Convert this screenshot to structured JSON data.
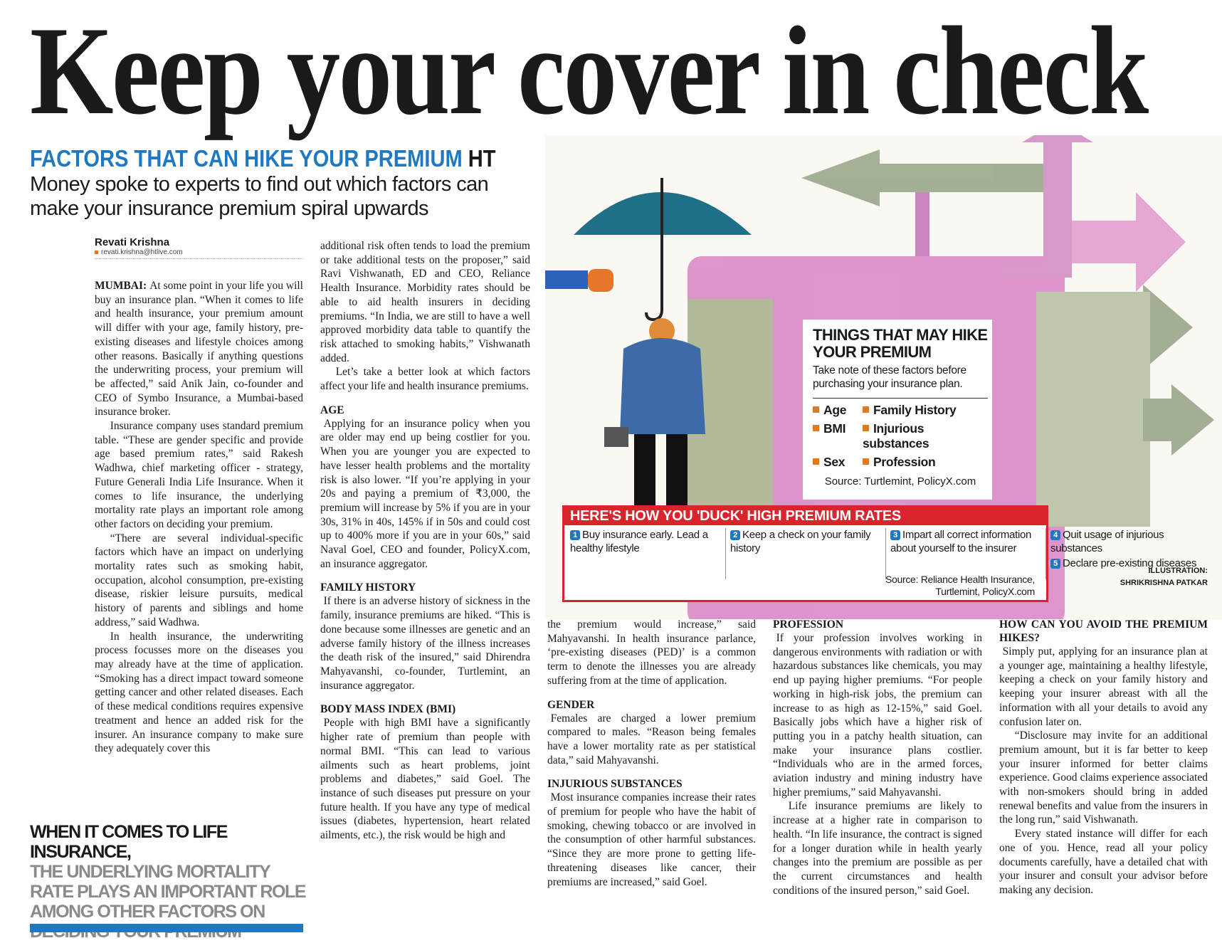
{
  "headline": "Keep your cover in check",
  "deck": {
    "kicker": "FACTORS THAT CAN HIKE YOUR PREMIUM",
    "brand": "HT",
    "standfirst": "Money spoke to experts to find out which factors can make your insurance premium spiral upwards"
  },
  "byline": {
    "name": "Revati Krishna",
    "email": "revati.krishna@htlive.com"
  },
  "columns": [
    [
      {
        "dateline": "MUMBAI:",
        "text": "At some point in your life you will buy an insurance plan. “When it comes to life and health insurance, your premium amount will differ with your age, family history, pre-existing diseases and lifestyle choices among other reasons. Basically if anything questions the underwriting process, your premium will be affected,” said Anik Jain, co-founder and CEO of Symbo Insurance, a Mumbai-based insurance broker."
      },
      {
        "text": "Insurance company uses standard premium table. “These are gender specific and provide age based premium rates,” said Rakesh Wadhwa, chief marketing officer - strategy, Future Generali India Life Insurance. When it comes to life insurance, the underlying mortality rate plays an important role among other factors on deciding your premium."
      },
      {
        "text": "“There are several individual-specific factors which have an impact on underlying mortality rates such as smoking habit, occupation, alcohol consumption, pre-existing disease, riskier leisure pursuits, medical history of parents and siblings and home address,” said Wadhwa."
      },
      {
        "text": "In health insurance, the underwriting process focusses more on the diseases you may already have at the time of application. “Smoking has a direct impact toward someone getting cancer and other related diseases. Each of these medical conditions requires expensive treatment and hence an added risk for the insurer. An insurance company to make sure they adequately cover this"
      }
    ],
    [
      {
        "text": "additional risk often tends to load the premium or take additional tests on the proposer,” said Ravi Vishwanath, ED and CEO, Reliance Health Insurance. Morbidity rates should be able to aid health insurers in deciding premiums. “In India, we are still to have a well approved morbidity data table to quantify the risk attached to smoking habits,” Vishwanath added."
      },
      {
        "text": "Let’s take a better look at which factors affect your life and health insurance premiums."
      },
      {
        "heading": "AGE"
      },
      {
        "text": "Applying for an insurance policy when you are older may end up being costlier for you. When you are younger you are expected to have lesser health problems and the mortality risk is also lower. “If you’re applying in your 20s and paying a premium of ₹3,000, the premium will increase by 5% if you are in your 30s, 31% in 40s, 145% if in 50s and could cost up to 400% more if you are in your 60s,” said Naval Goel, CEO and founder, PolicyX.com, an insurance aggregator."
      },
      {
        "heading": "FAMILY HISTORY"
      },
      {
        "text": "If there is an adverse history of sickness in the family, insurance premiums are hiked. “This is done because some illnesses are genetic and an adverse family history of the illness increases the death risk of the insured,” said Dhirendra Mahyavanshi, co-founder, Turtlemint, an insurance aggregator."
      },
      {
        "heading": "BODY MASS INDEX (BMI)"
      },
      {
        "text": "People with high BMI have a significantly higher rate of premium than people with normal BMI. “This can lead to various ailments such as heart problems, joint problems and diabetes,” said Goel. The instance of such diseases put pressure on your future health. If you have any type of medical issues (diabetes, hypertension, heart related ailments, etc.), the risk would be high and"
      }
    ],
    [
      {
        "text": "the premium would increase,” said Mahyavanshi. In health insurance parlance, ‘pre-existing diseases (PED)’ is a common term to denote the illnesses you are already suffering from at the time of application."
      },
      {
        "heading": "GENDER"
      },
      {
        "text": "Females are charged a lower premium compared to males. “Reason being females have a lower mortality rate as per statistical data,” said Mahyavanshi."
      },
      {
        "heading": "INJURIOUS SUBSTANCES"
      },
      {
        "text": "Most insurance companies increase their rates of premium for people who have the habit of smoking, chewing tobacco or are involved in the consumption of other harmful substances. “Since they are more prone to getting life-threatening diseases like cancer, their premiums are increased,” said Goel."
      }
    ],
    [
      {
        "heading": "PROFESSION"
      },
      {
        "text": "If your profession involves working in dangerous environments with radiation or with hazardous substances like chemicals, you may end up paying higher premiums. “For people working in high-risk jobs, the premium can increase to as high as 12-15%,” said Goel. Basically jobs which have a higher risk of putting you in a patchy health situation, can make your insurance plans costlier. “Individuals who are in the armed forces, aviation industry and mining industry have higher premiums,” said Mahyavanshi."
      },
      {
        "text": "Life insurance premiums are likely to increase at a higher rate in comparison to health. “In life insurance, the contract is signed for a longer duration while in health yearly changes into the premium are possible as per the current circumstances and health conditions of the insured person,” said Goel."
      }
    ],
    [
      {
        "heading": "HOW CAN YOU AVOID THE PREMIUM HIKES?"
      },
      {
        "text": "Simply put, applying for an insurance plan at a younger age, maintaining a healthy lifestyle, keeping a check on your family history and keeping your insurer abreast with all the information with all your details to avoid any confusion later on."
      },
      {
        "text": "“Disclosure may invite for an additional premium amount, but it is far better to keep your insurer informed for better claims experience. Good claims experience associated with non-smokers should bring in added renewal benefits and value from the insurers in the long run,” said Vishwanath."
      },
      {
        "text": "Every stated instance will differ for each one of you. Hence, read all your policy documents carefully, have a detailed chat with your insurer and consult your advisor before making any decision."
      }
    ]
  ],
  "pull_quote": {
    "lead": "WHEN IT COMES TO LIFE INSURANCE,",
    "text": "THE UNDERLYING MORTALITY RATE PLAYS AN IMPORTANT ROLE AMONG OTHER FACTORS ON DECIDING YOUR PREMIUM"
  },
  "infobox": {
    "title": "THINGS THAT MAY HIKE YOUR PREMIUM",
    "subtitle": "Take note of these factors before purchasing your insurance plan.",
    "factors": [
      "Age",
      "Family History",
      "BMI",
      "Injurious substances",
      "Sex",
      "Profession"
    ],
    "source": "Source: Turtlemint, PolicyX.com"
  },
  "tips_box": {
    "title": "HERE'S HOW YOU 'DUCK' HIGH PREMIUM RATES",
    "tips": [
      {
        "number": "1",
        "text": "Buy insurance early. Lead a healthy lifestyle"
      },
      {
        "number": "2",
        "text": "Keep a check on your family history"
      },
      {
        "number": "3",
        "text": "Impart all correct information about yourself to the insurer"
      },
      {
        "number": "4",
        "text": "Quit usage of injurious substances"
      },
      {
        "number": "5",
        "text": "Declare pre-existing diseases"
      }
    ],
    "source": "Source: Reliance Health Insurance, Turtlemint, PolicyX.com"
  },
  "illustration_credit": {
    "label": "ILLUSTRATION:",
    "artist": "SHRIKRISHNA PATKAR"
  }
}
